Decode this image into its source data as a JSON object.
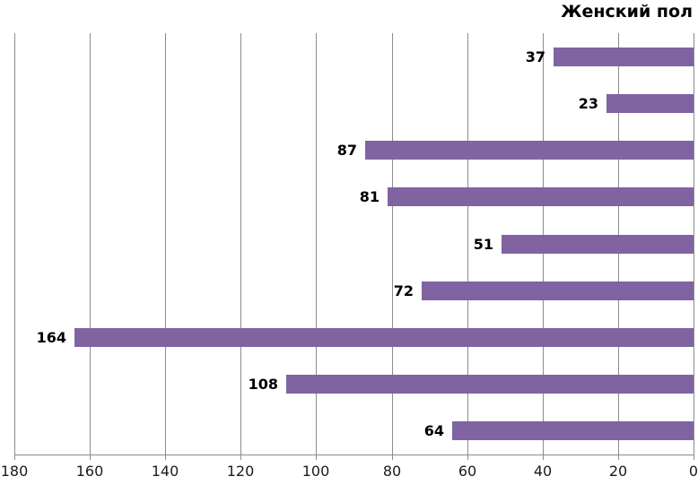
{
  "chart_data": {
    "type": "bar",
    "orientation": "horizontal",
    "title": "Женский пол",
    "values": [
      37,
      23,
      87,
      81,
      51,
      72,
      164,
      108,
      64
    ],
    "data_labels": [
      37,
      23,
      87,
      81,
      51,
      72,
      164,
      108,
      64
    ],
    "value_axis": {
      "ticks": [
        180,
        160,
        140,
        120,
        100,
        80,
        60,
        40,
        20,
        0
      ],
      "min": 0,
      "max": 180,
      "reversed": true,
      "position": "bottom"
    },
    "category_axis": {
      "labels_visible": false
    },
    "grid": true,
    "legend": false,
    "colors": {
      "bar": "#8064A2",
      "gridline": "#8C8C8C",
      "axis_line": "#8C8C8C",
      "tick_label_text": "#1a1a1a",
      "data_label_text": "#000000",
      "title_text": "#000000",
      "background": "#FFFFFF"
    }
  }
}
